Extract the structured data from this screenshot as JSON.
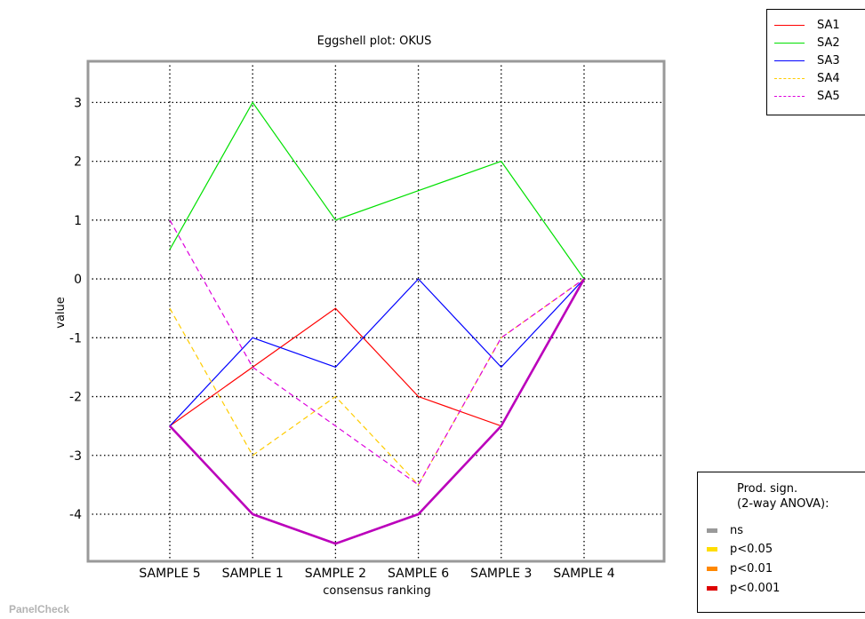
{
  "chart_data": {
    "type": "line",
    "title": "Eggshell plot: OKUS",
    "xlabel": "consensus ranking",
    "ylabel": "value",
    "categories": [
      "SAMPLE 5",
      "SAMPLE 1",
      "SAMPLE 2",
      "SAMPLE 6",
      "SAMPLE 3",
      "SAMPLE 4"
    ],
    "ylim": [
      -4.8,
      3.7
    ],
    "yticks": [
      -4,
      -3,
      -2,
      -1,
      0,
      1,
      2,
      3
    ],
    "grid": true,
    "legend_position": "top-right",
    "series": [
      {
        "name": "SA1",
        "values": [
          -2.5,
          -1.5,
          -0.5,
          -2,
          -2.5,
          0
        ],
        "color": "#ff0000",
        "dash": "solid"
      },
      {
        "name": "SA2",
        "values": [
          0.5,
          3,
          1,
          1.5,
          2,
          0
        ],
        "color": "#00e000",
        "dash": "solid"
      },
      {
        "name": "SA3",
        "values": [
          -2.5,
          -1,
          -1.5,
          0,
          -1.5,
          0
        ],
        "color": "#0000ff",
        "dash": "solid"
      },
      {
        "name": "SA4",
        "values": [
          -0.5,
          -3,
          -2,
          -3.5,
          -1,
          0
        ],
        "color": "#ffcc00",
        "dash": "dashed"
      },
      {
        "name": "SA5",
        "values": [
          1,
          -1.5,
          -2.5,
          -3.5,
          -1,
          0
        ],
        "color": "#dd00dd",
        "dash": "dashed"
      }
    ],
    "consensus_line": {
      "values": [
        -2.5,
        -4,
        -4.5,
        -4,
        -2.5,
        0
      ],
      "color": "#bb00bb"
    },
    "significance_legend": {
      "title_line1": "Prod. sign.",
      "title_line2": "(2-way ANOVA):",
      "entries": [
        {
          "label": "ns",
          "color": "#999999"
        },
        {
          "label": "p<0.05",
          "color": "#ffdd00"
        },
        {
          "label": "p<0.01",
          "color": "#ff8800"
        },
        {
          "label": "p<0.001",
          "color": "#dd0000"
        }
      ]
    }
  },
  "watermark": "PanelCheck"
}
